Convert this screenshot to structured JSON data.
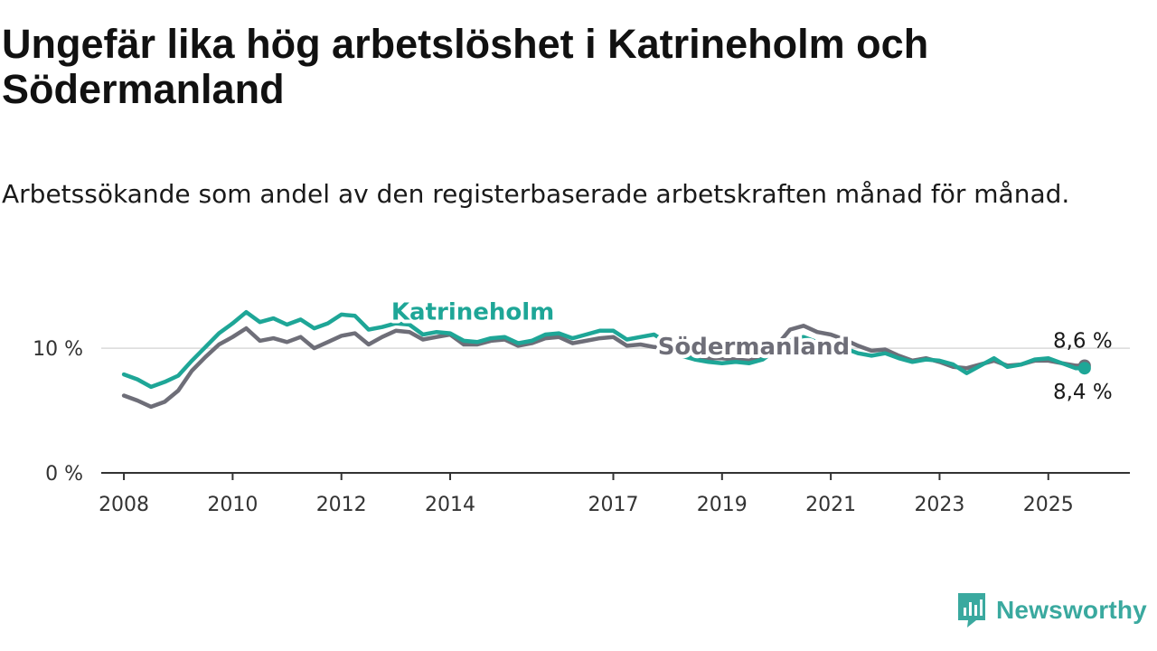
{
  "title": "Ungefär lika hög arbetslöshet i Katrineholm och Södermanland",
  "subtitle": "Arbetssökande som andel av den registerbaserade arbetskraften månad för månad.",
  "brand": {
    "name": "Newsworthy",
    "icon": "newsworthy-logo-icon",
    "color": "#3aa99f"
  },
  "chart_data": {
    "type": "line",
    "x_ticks": [
      "2008",
      "2010",
      "2012",
      "2014",
      "2017",
      "2019",
      "2021",
      "2023",
      "2025"
    ],
    "y_ticks": [
      "0 %",
      "10 %"
    ],
    "ylim": [
      0,
      14
    ],
    "xlim": [
      "2007-08",
      "2026-07"
    ],
    "grid": "horizontal at 10 %",
    "series": [
      {
        "name": "Södermanland",
        "color": "#6e6e78",
        "end_label": "8,6 %",
        "points": [
          [
            "2008-01",
            6.2
          ],
          [
            "2008-04",
            5.8
          ],
          [
            "2008-07",
            5.3
          ],
          [
            "2008-10",
            5.7
          ],
          [
            "2009-01",
            6.6
          ],
          [
            "2009-04",
            8.2
          ],
          [
            "2009-07",
            9.3
          ],
          [
            "2009-10",
            10.3
          ],
          [
            "2010-01",
            10.9
          ],
          [
            "2010-04",
            11.6
          ],
          [
            "2010-07",
            10.6
          ],
          [
            "2010-10",
            10.8
          ],
          [
            "2011-01",
            10.5
          ],
          [
            "2011-04",
            10.9
          ],
          [
            "2011-07",
            10.0
          ],
          [
            "2011-10",
            10.5
          ],
          [
            "2012-01",
            11.0
          ],
          [
            "2012-04",
            11.2
          ],
          [
            "2012-07",
            10.3
          ],
          [
            "2012-10",
            10.9
          ],
          [
            "2013-01",
            11.4
          ],
          [
            "2013-04",
            11.3
          ],
          [
            "2013-07",
            10.7
          ],
          [
            "2013-10",
            10.9
          ],
          [
            "2014-01",
            11.1
          ],
          [
            "2014-04",
            10.3
          ],
          [
            "2014-07",
            10.3
          ],
          [
            "2014-10",
            10.6
          ],
          [
            "2015-01",
            10.7
          ],
          [
            "2015-04",
            10.2
          ],
          [
            "2015-07",
            10.4
          ],
          [
            "2015-10",
            10.8
          ],
          [
            "2016-01",
            10.9
          ],
          [
            "2016-04",
            10.4
          ],
          [
            "2016-07",
            10.6
          ],
          [
            "2016-10",
            10.8
          ],
          [
            "2017-01",
            10.9
          ],
          [
            "2017-04",
            10.2
          ],
          [
            "2017-07",
            10.3
          ],
          [
            "2017-10",
            10.1
          ],
          [
            "2018-01",
            10.0
          ],
          [
            "2018-04",
            9.4
          ],
          [
            "2018-07",
            9.3
          ],
          [
            "2018-10",
            9.2
          ],
          [
            "2019-01",
            9.2
          ],
          [
            "2019-04",
            9.1
          ],
          [
            "2019-07",
            9.0
          ],
          [
            "2019-10",
            9.4
          ],
          [
            "2020-01",
            10.2
          ],
          [
            "2020-04",
            11.5
          ],
          [
            "2020-07",
            11.8
          ],
          [
            "2020-10",
            11.3
          ],
          [
            "2021-01",
            11.1
          ],
          [
            "2021-04",
            10.7
          ],
          [
            "2021-07",
            10.2
          ],
          [
            "2021-10",
            9.8
          ],
          [
            "2022-01",
            9.9
          ],
          [
            "2022-04",
            9.4
          ],
          [
            "2022-07",
            9.0
          ],
          [
            "2022-10",
            9.2
          ],
          [
            "2023-01",
            8.9
          ],
          [
            "2023-04",
            8.5
          ],
          [
            "2023-07",
            8.4
          ],
          [
            "2023-10",
            8.7
          ],
          [
            "2024-01",
            9.0
          ],
          [
            "2024-04",
            8.6
          ],
          [
            "2024-07",
            8.7
          ],
          [
            "2024-10",
            9.0
          ],
          [
            "2025-01",
            9.0
          ],
          [
            "2025-04",
            8.8
          ],
          [
            "2025-07",
            8.6
          ],
          [
            "2025-09",
            8.6
          ]
        ]
      },
      {
        "name": "Katrineholm",
        "color": "#1ea697",
        "end_label": "8,4 %",
        "points": [
          [
            "2008-01",
            7.9
          ],
          [
            "2008-04",
            7.5
          ],
          [
            "2008-07",
            6.9
          ],
          [
            "2008-10",
            7.3
          ],
          [
            "2009-01",
            7.8
          ],
          [
            "2009-04",
            9.0
          ],
          [
            "2009-07",
            10.1
          ],
          [
            "2009-10",
            11.2
          ],
          [
            "2010-01",
            12.0
          ],
          [
            "2010-04",
            12.9
          ],
          [
            "2010-07",
            12.1
          ],
          [
            "2010-10",
            12.4
          ],
          [
            "2011-01",
            11.9
          ],
          [
            "2011-04",
            12.3
          ],
          [
            "2011-07",
            11.6
          ],
          [
            "2011-10",
            12.0
          ],
          [
            "2012-01",
            12.7
          ],
          [
            "2012-04",
            12.6
          ],
          [
            "2012-07",
            11.5
          ],
          [
            "2012-10",
            11.7
          ],
          [
            "2013-01",
            12.0
          ],
          [
            "2013-04",
            11.9
          ],
          [
            "2013-07",
            11.1
          ],
          [
            "2013-10",
            11.3
          ],
          [
            "2014-01",
            11.2
          ],
          [
            "2014-04",
            10.6
          ],
          [
            "2014-07",
            10.5
          ],
          [
            "2014-10",
            10.8
          ],
          [
            "2015-01",
            10.9
          ],
          [
            "2015-04",
            10.4
          ],
          [
            "2015-07",
            10.6
          ],
          [
            "2015-10",
            11.1
          ],
          [
            "2016-01",
            11.2
          ],
          [
            "2016-04",
            10.8
          ],
          [
            "2016-07",
            11.1
          ],
          [
            "2016-10",
            11.4
          ],
          [
            "2017-01",
            11.4
          ],
          [
            "2017-04",
            10.7
          ],
          [
            "2017-07",
            10.9
          ],
          [
            "2017-10",
            11.1
          ],
          [
            "2018-01",
            10.4
          ],
          [
            "2018-04",
            9.4
          ],
          [
            "2018-07",
            9.1
          ],
          [
            "2018-10",
            8.9
          ],
          [
            "2019-01",
            8.8
          ],
          [
            "2019-04",
            8.9
          ],
          [
            "2019-07",
            8.8
          ],
          [
            "2019-10",
            9.1
          ],
          [
            "2020-01",
            9.9
          ],
          [
            "2020-04",
            10.6
          ],
          [
            "2020-07",
            10.9
          ],
          [
            "2020-10",
            10.5
          ],
          [
            "2021-01",
            10.3
          ],
          [
            "2021-04",
            10.0
          ],
          [
            "2021-07",
            9.6
          ],
          [
            "2021-10",
            9.4
          ],
          [
            "2022-01",
            9.6
          ],
          [
            "2022-04",
            9.2
          ],
          [
            "2022-07",
            8.9
          ],
          [
            "2022-10",
            9.1
          ],
          [
            "2023-01",
            9.0
          ],
          [
            "2023-04",
            8.7
          ],
          [
            "2023-07",
            8.0
          ],
          [
            "2023-10",
            8.6
          ],
          [
            "2024-01",
            9.2
          ],
          [
            "2024-04",
            8.5
          ],
          [
            "2024-07",
            8.7
          ],
          [
            "2024-10",
            9.1
          ],
          [
            "2025-01",
            9.2
          ],
          [
            "2025-04",
            8.8
          ],
          [
            "2025-07",
            8.4
          ],
          [
            "2025-09",
            8.4
          ]
        ]
      }
    ]
  }
}
